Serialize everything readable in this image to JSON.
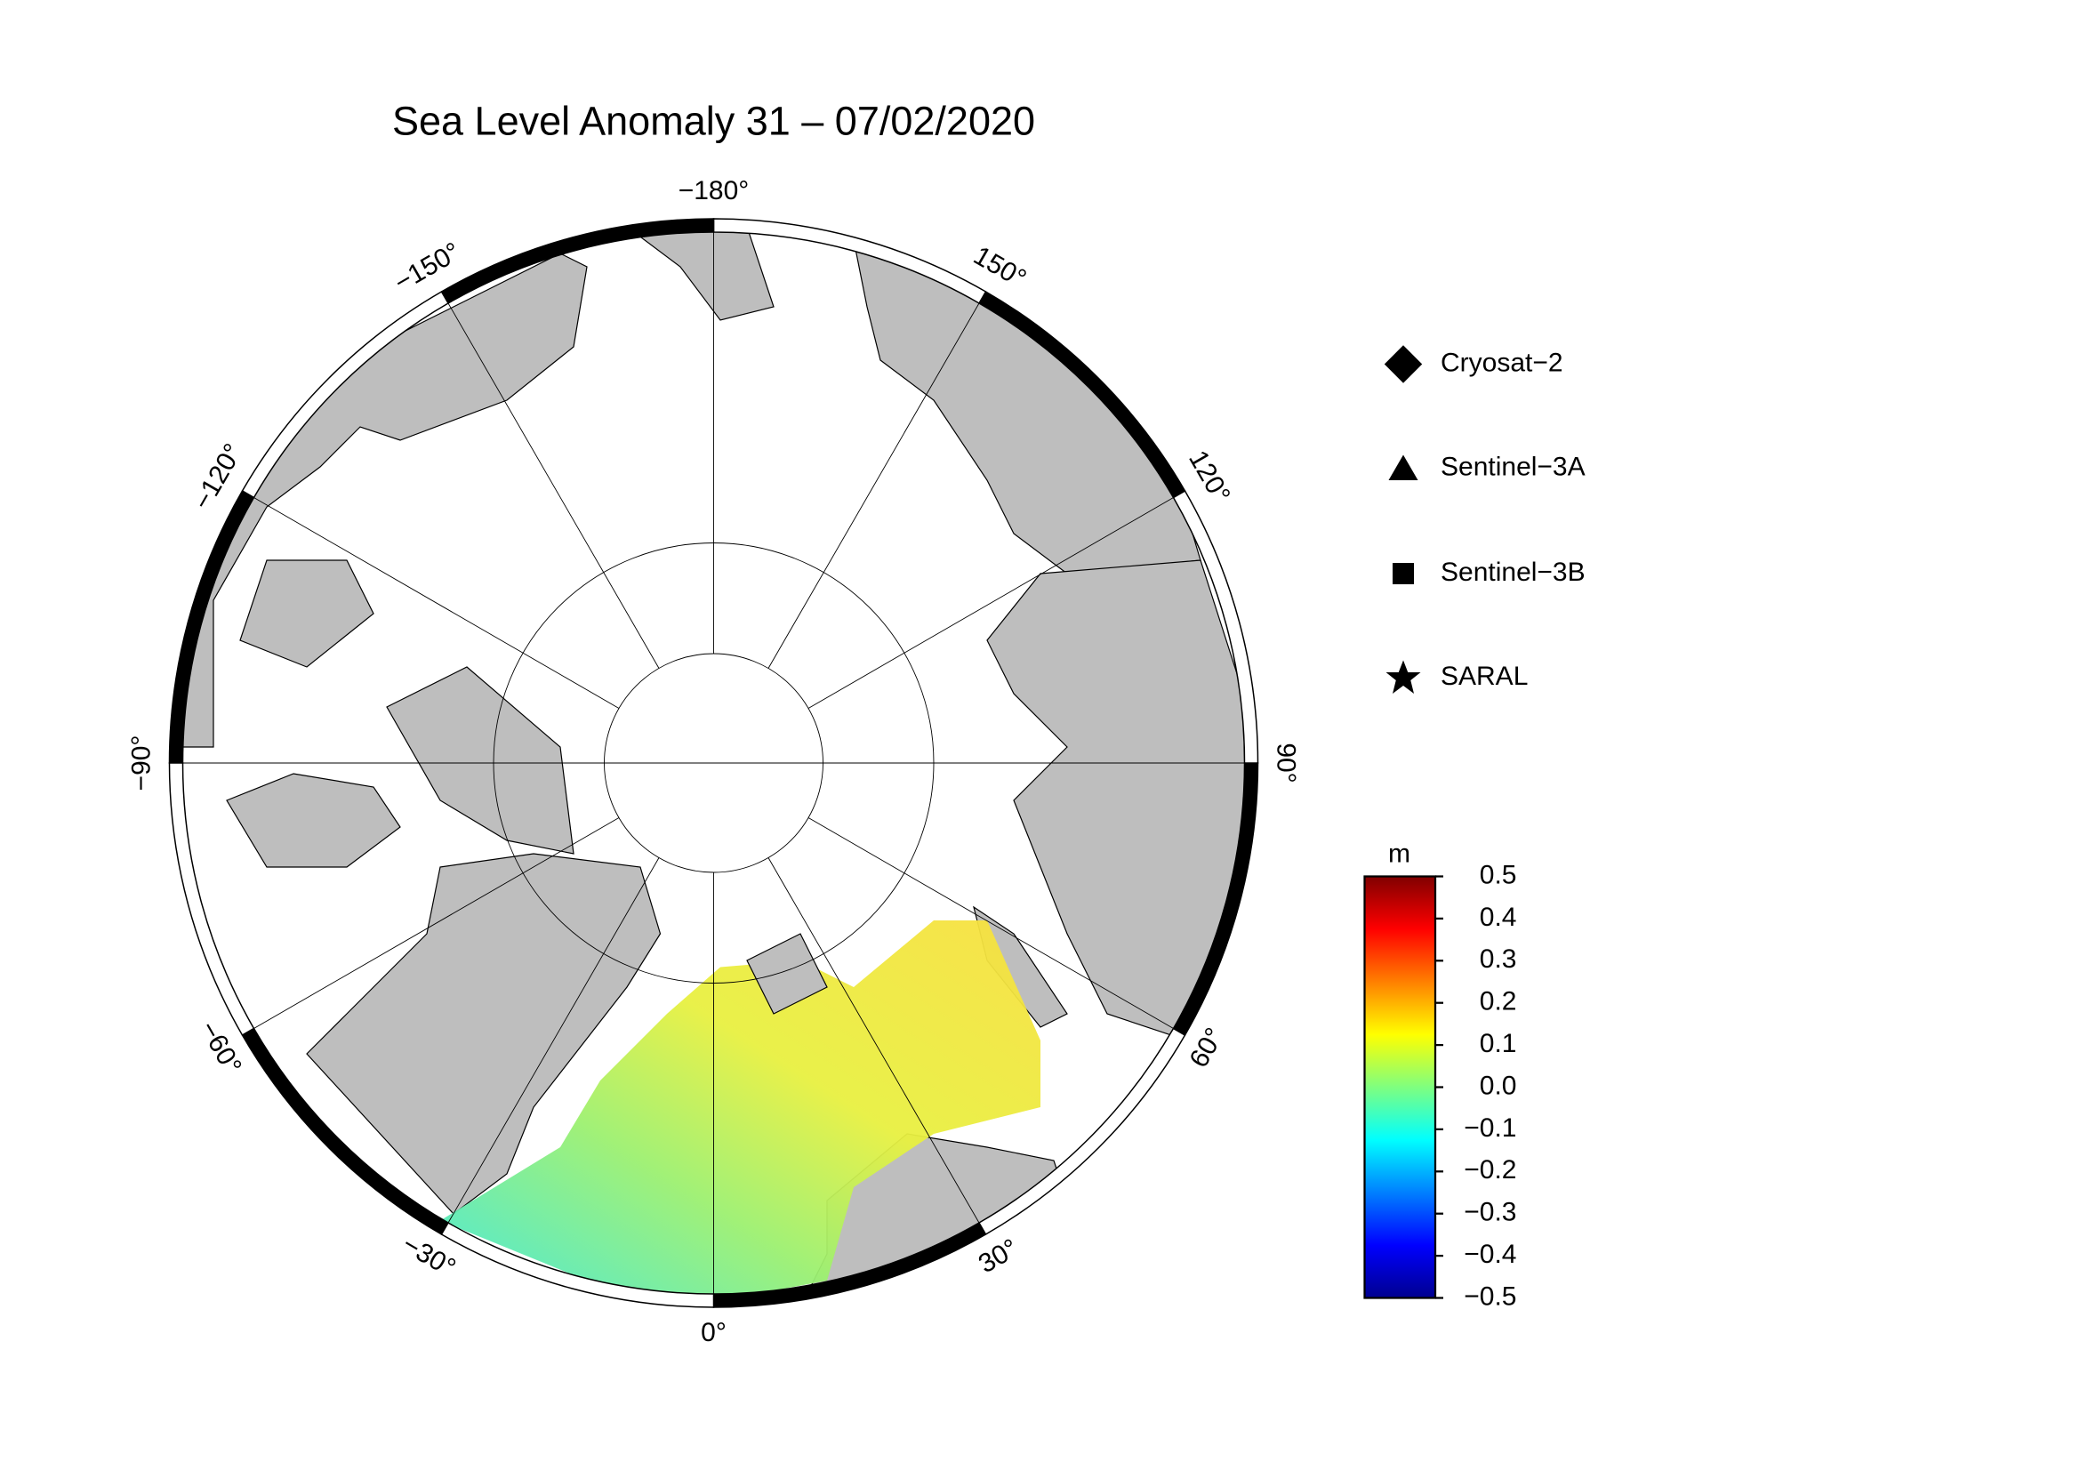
{
  "title": "Sea Level Anomaly 31 – 07/02/2020",
  "map": {
    "projection": "north-polar-stereographic",
    "longitude_labels": [
      {
        "value": 0,
        "label": "0°"
      },
      {
        "value": 30,
        "label": "30°"
      },
      {
        "value": 60,
        "label": "60°"
      },
      {
        "value": 90,
        "label": "90°"
      },
      {
        "value": 120,
        "label": "120°"
      },
      {
        "value": 150,
        "label": "150°"
      },
      {
        "value": -180,
        "label": "−180°"
      },
      {
        "value": -150,
        "label": "−150°"
      },
      {
        "value": -120,
        "label": "−120°"
      },
      {
        "value": -90,
        "label": "−90°"
      },
      {
        "value": -60,
        "label": "−60°"
      },
      {
        "value": -30,
        "label": "−30°"
      }
    ]
  },
  "legend": [
    "Cryosat−2",
    "Sentinel−3A",
    "Sentinel−3B",
    "SARAL"
  ],
  "colorbar": {
    "unit": "m",
    "clim": [
      -0.5,
      0.5
    ],
    "ticks": [
      {
        "value": 0.5,
        "label": "0.5"
      },
      {
        "value": 0.4,
        "label": "0.4"
      },
      {
        "value": 0.3,
        "label": "0.3"
      },
      {
        "value": 0.2,
        "label": "0.2"
      },
      {
        "value": 0.1,
        "label": "0.1"
      },
      {
        "value": 0,
        "label": "0.0"
      },
      {
        "value": -0.1,
        "label": "−0.1"
      },
      {
        "value": -0.2,
        "label": "−0.2"
      },
      {
        "value": -0.3,
        "label": "−0.3"
      },
      {
        "value": -0.4,
        "label": "−0.4"
      },
      {
        "value": -0.5,
        "label": "−0.5"
      }
    ]
  }
}
